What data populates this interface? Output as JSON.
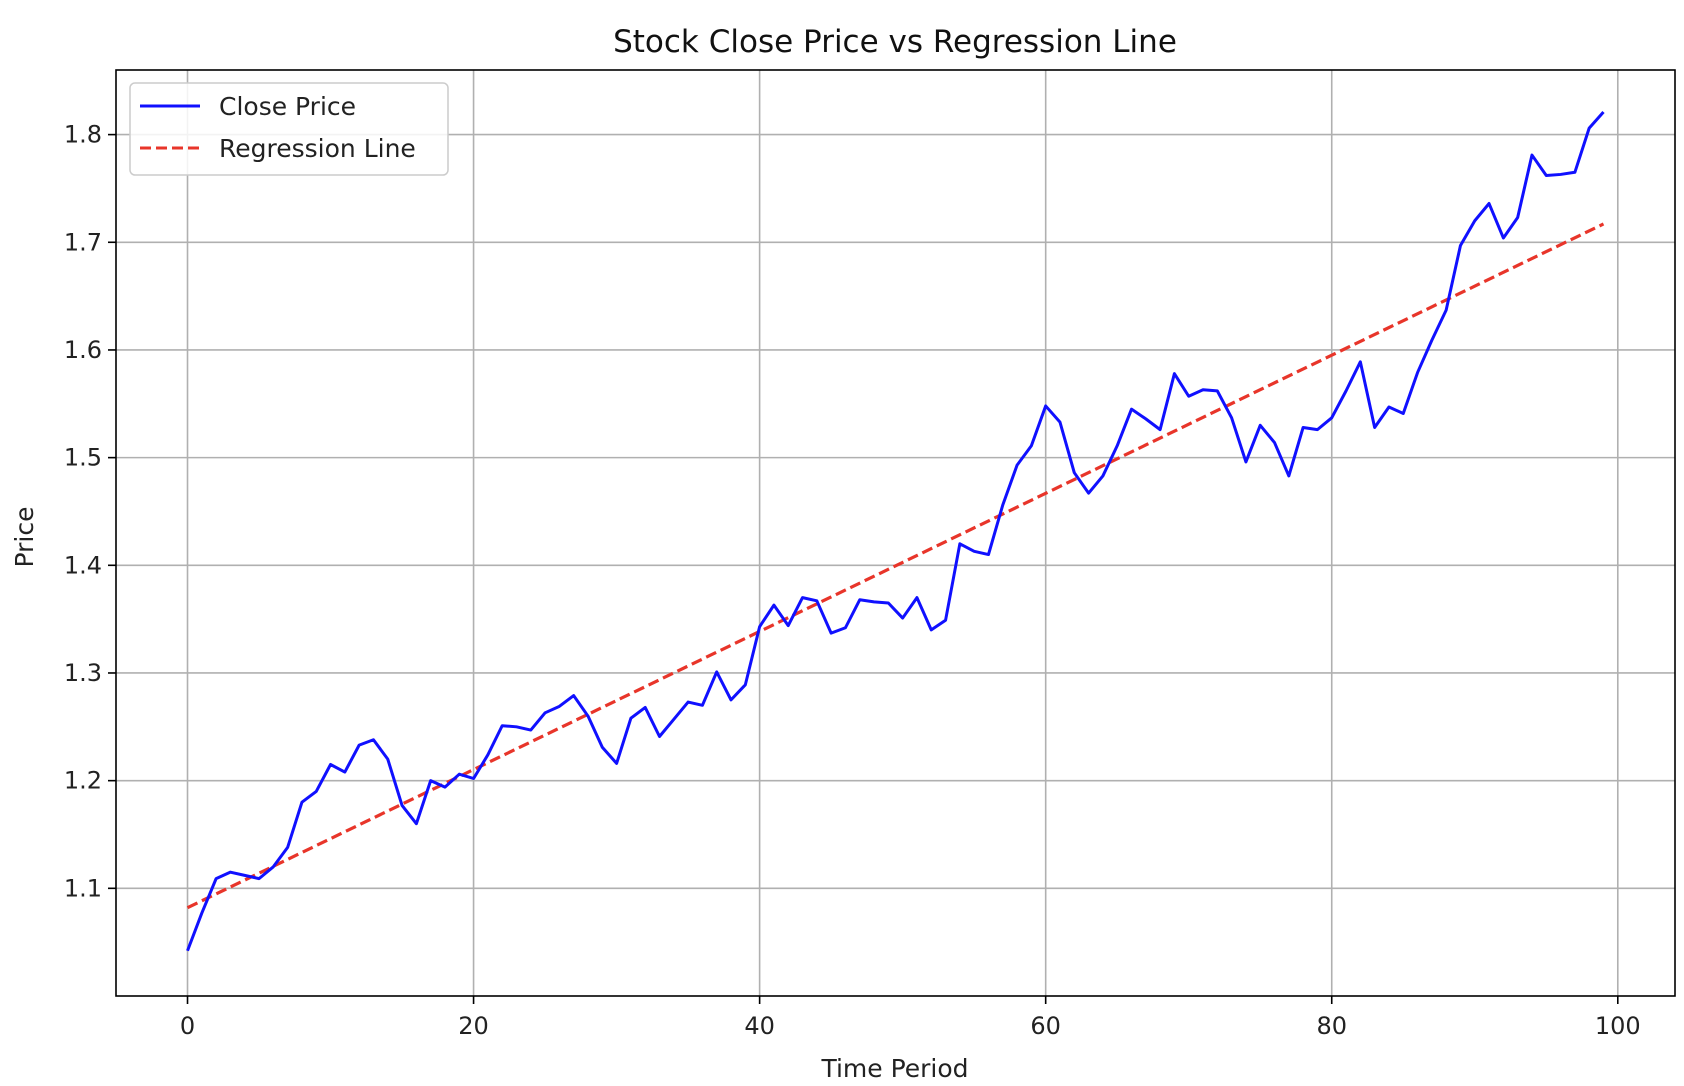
{
  "chart_data": {
    "type": "line",
    "title": "Stock Close Price vs Regression Line",
    "xlabel": "Time Period",
    "ylabel": "Price",
    "xlim": [
      -5,
      104
    ],
    "ylim": [
      1.0,
      1.86
    ],
    "grid": true,
    "legend_position": "upper-left",
    "x_ticks": [
      0,
      20,
      40,
      60,
      80,
      100
    ],
    "x_tick_labels": [
      "0",
      "20",
      "40",
      "60",
      "80",
      "100"
    ],
    "y_ticks": [
      1.1,
      1.2,
      1.3,
      1.4,
      1.5,
      1.6,
      1.7,
      1.8
    ],
    "y_tick_labels": [
      "1.1",
      "1.2",
      "1.3",
      "1.4",
      "1.5",
      "1.6",
      "1.7",
      "1.8"
    ],
    "x": [
      0,
      1,
      2,
      3,
      4,
      5,
      6,
      7,
      8,
      9,
      10,
      11,
      12,
      13,
      14,
      15,
      16,
      17,
      18,
      19,
      20,
      21,
      22,
      23,
      24,
      25,
      26,
      27,
      28,
      29,
      30,
      31,
      32,
      33,
      34,
      35,
      36,
      37,
      38,
      39,
      40,
      41,
      42,
      43,
      44,
      45,
      46,
      47,
      48,
      49,
      50,
      51,
      52,
      53,
      54,
      55,
      56,
      57,
      58,
      59,
      60,
      61,
      62,
      63,
      64,
      65,
      66,
      67,
      68,
      69,
      70,
      71,
      72,
      73,
      74,
      75,
      76,
      77,
      78,
      79,
      80,
      81,
      82,
      83,
      84,
      85,
      86,
      87,
      88,
      89,
      90,
      91,
      92,
      93,
      94,
      95,
      96,
      97,
      98,
      99
    ],
    "series": [
      {
        "name": "Close Price",
        "color": "#1010ff",
        "style": "solid",
        "values": [
          1.042,
          1.077,
          1.109,
          1.115,
          1.112,
          1.109,
          1.12,
          1.138,
          1.18,
          1.19,
          1.215,
          1.208,
          1.233,
          1.238,
          1.22,
          1.177,
          1.16,
          1.2,
          1.194,
          1.206,
          1.202,
          1.224,
          1.251,
          1.25,
          1.247,
          1.263,
          1.269,
          1.279,
          1.26,
          1.231,
          1.216,
          1.258,
          1.268,
          1.241,
          1.257,
          1.273,
          1.27,
          1.301,
          1.275,
          1.289,
          1.343,
          1.363,
          1.344,
          1.37,
          1.367,
          1.337,
          1.342,
          1.368,
          1.366,
          1.365,
          1.351,
          1.37,
          1.34,
          1.349,
          1.42,
          1.413,
          1.41,
          1.456,
          1.493,
          1.511,
          1.548,
          1.533,
          1.486,
          1.467,
          1.483,
          1.511,
          1.545,
          1.536,
          1.526,
          1.578,
          1.557,
          1.563,
          1.562,
          1.537,
          1.496,
          1.53,
          1.514,
          1.483,
          1.528,
          1.526,
          1.537,
          1.562,
          1.589,
          1.528,
          1.547,
          1.541,
          1.579,
          1.609,
          1.637,
          1.697,
          1.72,
          1.736,
          1.704,
          1.723,
          1.781,
          1.762,
          1.763,
          1.765,
          1.806,
          1.821
        ]
      },
      {
        "name": "Regression Line",
        "color": "#e8352a",
        "style": "dashed",
        "values_start": 1.082,
        "values_end": 1.717
      }
    ]
  }
}
